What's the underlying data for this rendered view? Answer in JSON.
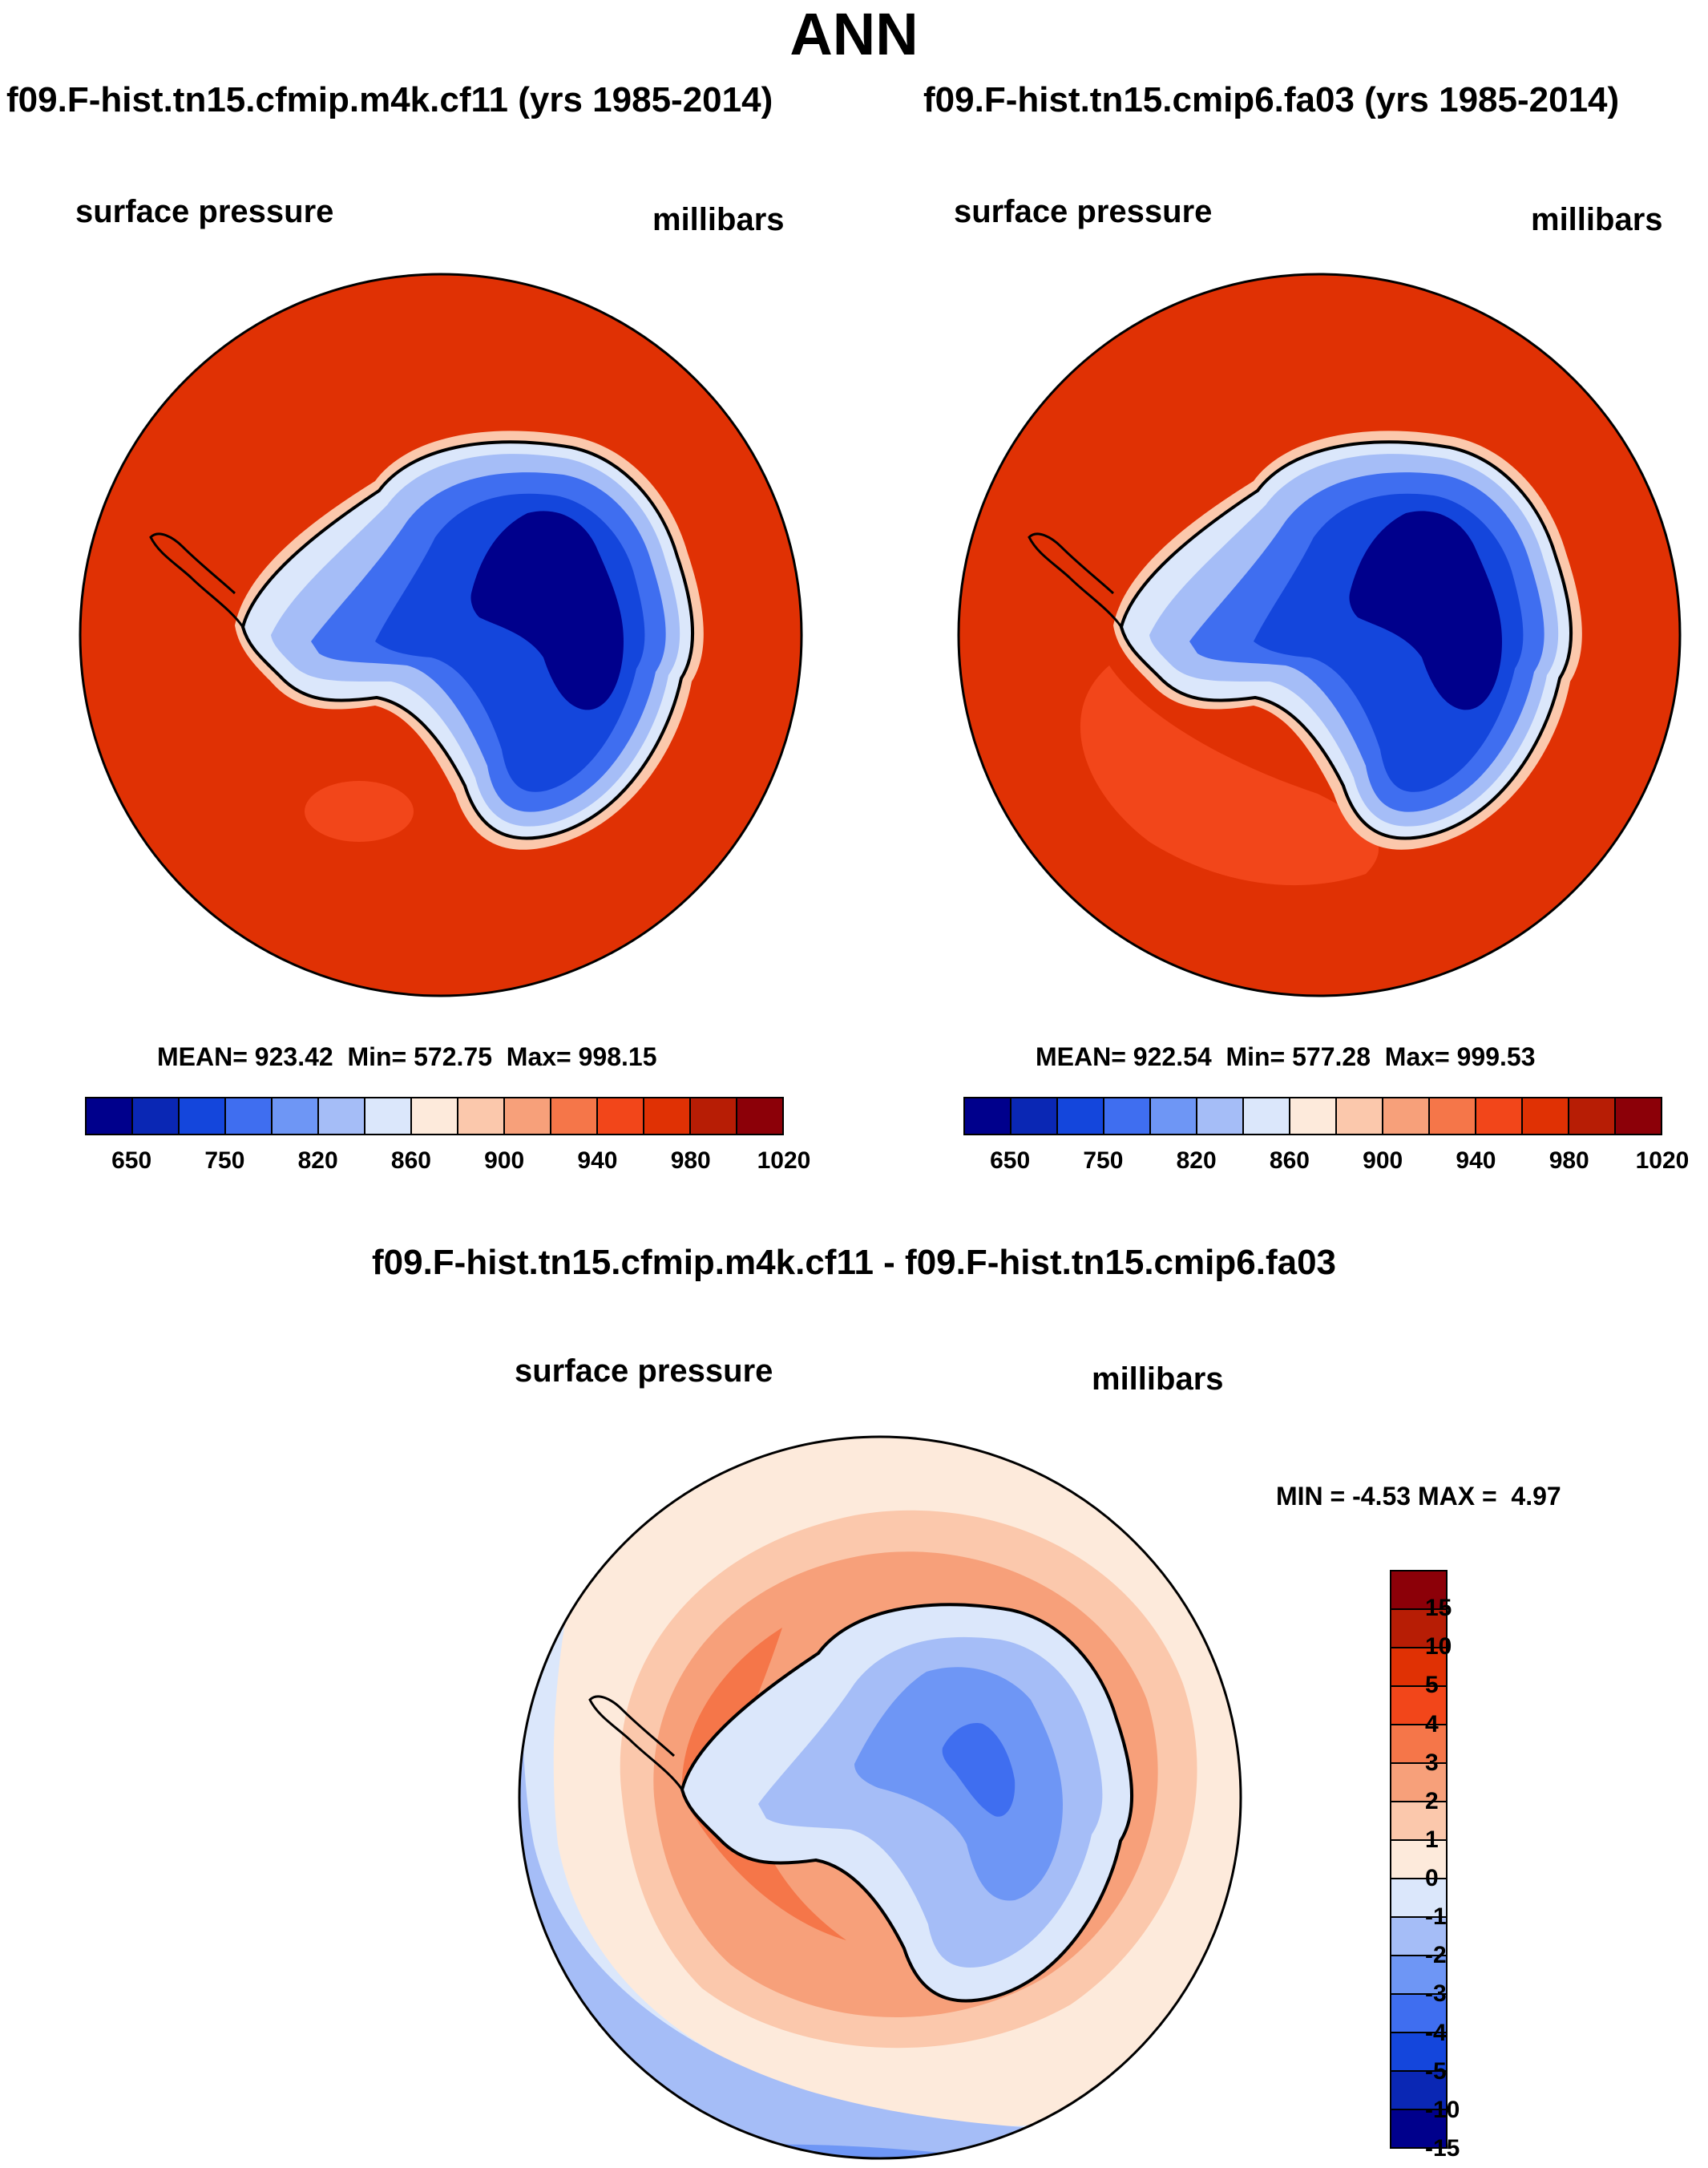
{
  "season": "ANN",
  "panels": [
    {
      "title": "f09.F-hist.tn15.cfmip.m4k.cf11 (yrs 1985-2014)",
      "variable": "surface pressure",
      "units": "millibars",
      "stats": {
        "mean_label": "MEAN=",
        "mean": "923.42",
        "min_label": "Min=",
        "min": "572.75",
        "max_label": "Max=",
        "max": "998.15"
      }
    },
    {
      "title": "f09.F-hist.tn15.cmip6.fa03 (yrs 1985-2014)",
      "variable": "surface pressure",
      "units": "millibars",
      "stats": {
        "mean_label": "MEAN=",
        "mean": "922.54",
        "min_label": "Min=",
        "min": "577.28",
        "max_label": "Max=",
        "max": "999.53"
      }
    }
  ],
  "diff_panel": {
    "title": "f09.F-hist.tn15.cfmip.m4k.cf11 - f09.F-hist.tn15.cmip6.fa03",
    "variable": "surface pressure",
    "units": "millibars",
    "stats": {
      "min_label": "MIN =",
      "min": "-4.53",
      "max_label": "MAX =",
      "max": "4.97"
    }
  },
  "colorbar_abs": {
    "colors": [
      "#00008c",
      "#0a27b4",
      "#1446dc",
      "#3f6ef0",
      "#6e96f5",
      "#a5bdf7",
      "#dbe7fb",
      "#fdeadb",
      "#fbc8ac",
      "#f7a07a",
      "#f57649",
      "#f2461a",
      "#e03104",
      "#b71d05",
      "#8c0008"
    ],
    "tick_labels": [
      "650",
      "750",
      "820",
      "860",
      "900",
      "940",
      "980",
      "1020"
    ]
  },
  "colorbar_diff": {
    "colors_top_to_bottom": [
      "#8c0008",
      "#b71d05",
      "#e03104",
      "#f2461a",
      "#f57649",
      "#f7a07a",
      "#fbc8ac",
      "#fdeadb",
      "#dbe7fb",
      "#a5bdf7",
      "#6e96f5",
      "#3f6ef0",
      "#1446dc",
      "#0a27b4",
      "#00008c"
    ],
    "tick_labels_top_to_bottom": [
      "15",
      "10",
      "5",
      "4",
      "3",
      "2",
      "1",
      "0",
      "-1",
      "-2",
      "-3",
      "-4",
      "-5",
      "-10",
      "-15"
    ]
  },
  "map_colors": {
    "ocean_abs": "#e03104",
    "ocean_abs_light": "#f2461a",
    "land_dark": "#00008c",
    "land_mid": "#1446dc",
    "land_light": "#3f6ef0",
    "land_pale": "#a5bdf7",
    "coast_pale": "#dbe7fb",
    "coast_warm": "#fbc8ac",
    "coast_line": "#000000",
    "diff_ring1": "#fdeadb",
    "diff_ring2": "#fbc8ac",
    "diff_ring3": "#f7a07a",
    "diff_ring4": "#f57649",
    "diff_blue1": "#dbe7fb",
    "diff_blue2": "#a5bdf7",
    "diff_blue3": "#6e96f5"
  }
}
